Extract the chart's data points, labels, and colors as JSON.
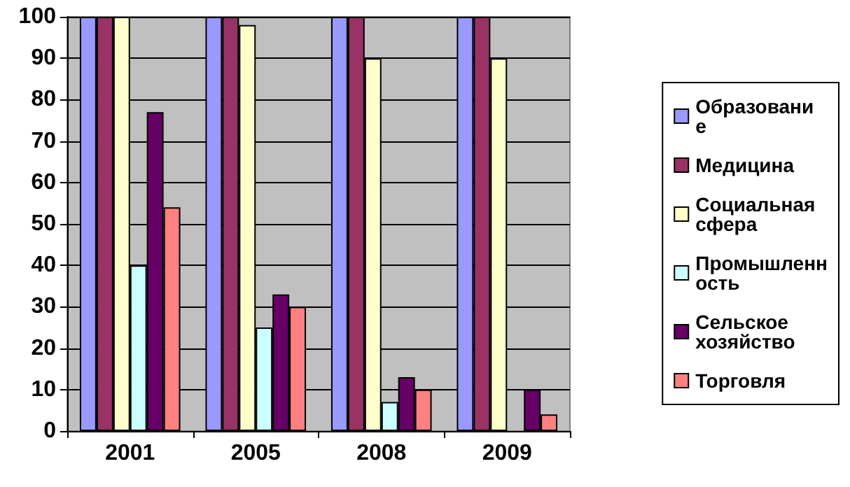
{
  "chart_data": {
    "type": "bar",
    "categories": [
      "2001",
      "2005",
      "2008",
      "2009"
    ],
    "series": [
      {
        "name": "Образование",
        "color": "#9999ff",
        "values": [
          100,
          100,
          100,
          100
        ]
      },
      {
        "name": "Медицина",
        "color": "#993366",
        "values": [
          100,
          100,
          100,
          100
        ]
      },
      {
        "name": "Социальная сфера",
        "color": "#ffffcc",
        "values": [
          100,
          98,
          90,
          90
        ]
      },
      {
        "name": "Промышленность",
        "color": "#ccffff",
        "values": [
          40,
          25,
          7,
          0
        ]
      },
      {
        "name": "Сельское хозяйство",
        "color": "#660066",
        "values": [
          77,
          33,
          13,
          10
        ]
      },
      {
        "name": "Торговля",
        "color": "#ff8080",
        "values": [
          54,
          30,
          10,
          4
        ]
      }
    ],
    "ylim": [
      0,
      100
    ],
    "yticks": [
      0,
      10,
      20,
      30,
      40,
      50,
      60,
      70,
      80,
      90,
      100
    ],
    "grid": "y",
    "legend": "right"
  }
}
